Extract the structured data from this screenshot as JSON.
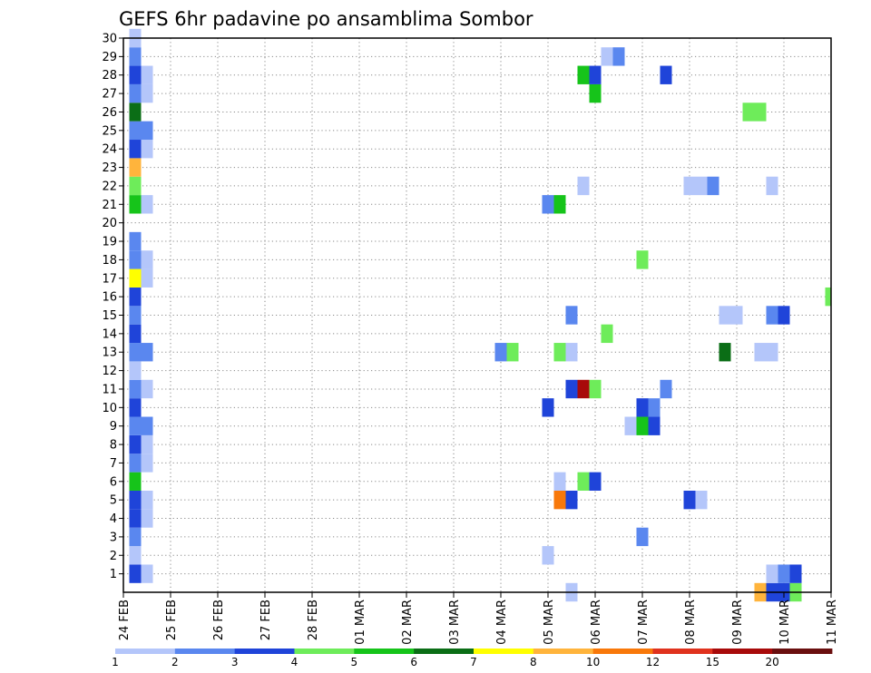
{
  "chart_data": {
    "type": "heatmap",
    "title": "GEFS 6hr padavine po ansamblima Sombor",
    "x_tick_labels": [
      "24 FEB",
      "25 FEB",
      "26 FEB",
      "27 FEB",
      "28 FEB",
      "01 MAR",
      "02 MAR",
      "03 MAR",
      "04 MAR",
      "05 MAR",
      "06 MAR",
      "07 MAR",
      "08 MAR",
      "09 MAR",
      "10 MAR",
      "11 MAR"
    ],
    "y_tick_labels": [
      "1",
      "2",
      "3",
      "4",
      "5",
      "6",
      "7",
      "8",
      "9",
      "10",
      "11",
      "12",
      "13",
      "14",
      "15",
      "16",
      "17",
      "18",
      "19",
      "20",
      "21",
      "22",
      "23",
      "24",
      "25",
      "26",
      "27",
      "28",
      "29",
      "30"
    ],
    "y_range": [
      0,
      30
    ],
    "x_range_days": [
      0,
      15
    ],
    "grid": true,
    "colorbar": {
      "labels": [
        "1",
        "2",
        "3",
        "4",
        "5",
        "6",
        "7",
        "8",
        "10",
        "12",
        "15",
        "20"
      ],
      "colors": [
        "#b4c6fa",
        "#5a87ef",
        "#1f44d9",
        "#6eec5a",
        "#16c41a",
        "#0b6e16",
        "#ffff00",
        "#ffb43c",
        "#f8780a",
        "#e0321e",
        "#a80a0a",
        "#6a0f0f"
      ]
    },
    "cells": [
      {
        "day": 0.25,
        "member": 0,
        "level": 3
      },
      {
        "day": 0.5,
        "member": 0,
        "level": 1
      },
      {
        "day": 0.25,
        "member": 1,
        "level": 1
      },
      {
        "day": 0.25,
        "member": 2,
        "level": 2
      },
      {
        "day": 0.25,
        "member": 3,
        "level": 3
      },
      {
        "day": 0.5,
        "member": 3,
        "level": 1
      },
      {
        "day": 0.25,
        "member": 4,
        "level": 3
      },
      {
        "day": 0.5,
        "member": 4,
        "level": 1
      },
      {
        "day": 0.25,
        "member": 5,
        "level": 5
      },
      {
        "day": 0.25,
        "member": 6,
        "level": 2
      },
      {
        "day": 0.5,
        "member": 6,
        "level": 1
      },
      {
        "day": 0.25,
        "member": 7,
        "level": 3
      },
      {
        "day": 0.5,
        "member": 7,
        "level": 1
      },
      {
        "day": 0.25,
        "member": 8,
        "level": 2
      },
      {
        "day": 0.5,
        "member": 8,
        "level": 2
      },
      {
        "day": 0.25,
        "member": 9,
        "level": 3
      },
      {
        "day": 0.25,
        "member": 10,
        "level": 2
      },
      {
        "day": 0.5,
        "member": 10,
        "level": 1
      },
      {
        "day": 0.25,
        "member": 11,
        "level": 1
      },
      {
        "day": 0.25,
        "member": 12,
        "level": 2
      },
      {
        "day": 0.5,
        "member": 12,
        "level": 2
      },
      {
        "day": 0.25,
        "member": 13,
        "level": 3
      },
      {
        "day": 0.25,
        "member": 14,
        "level": 2
      },
      {
        "day": 0.25,
        "member": 15,
        "level": 3
      },
      {
        "day": 0.25,
        "member": 16,
        "level": 7
      },
      {
        "day": 0.5,
        "member": 16,
        "level": 1
      },
      {
        "day": 0.25,
        "member": 17,
        "level": 2
      },
      {
        "day": 0.5,
        "member": 17,
        "level": 1
      },
      {
        "day": 0.25,
        "member": 18,
        "level": 2
      },
      {
        "day": 0.25,
        "member": 20,
        "level": 5
      },
      {
        "day": 0.5,
        "member": 20,
        "level": 1
      },
      {
        "day": 0.25,
        "member": 21,
        "level": 4
      },
      {
        "day": 0.25,
        "member": 22,
        "level": 8
      },
      {
        "day": 0.25,
        "member": 23,
        "level": 3
      },
      {
        "day": 0.5,
        "member": 23,
        "level": 1
      },
      {
        "day": 0.25,
        "member": 24,
        "level": 2
      },
      {
        "day": 0.5,
        "member": 24,
        "level": 2
      },
      {
        "day": 0.25,
        "member": 25,
        "level": 6
      },
      {
        "day": 0.25,
        "member": 26,
        "level": 2
      },
      {
        "day": 0.5,
        "member": 26,
        "level": 1
      },
      {
        "day": 0.25,
        "member": 27,
        "level": 3
      },
      {
        "day": 0.5,
        "member": 27,
        "level": 1
      },
      {
        "day": 0.25,
        "member": 28,
        "level": 2
      },
      {
        "day": 0.25,
        "member": 29,
        "level": 1
      },
      {
        "day": 9.0,
        "member": 1,
        "level": 1
      },
      {
        "day": 11.0,
        "member": 2,
        "level": 2
      },
      {
        "day": 9.25,
        "member": 4,
        "level": 9
      },
      {
        "day": 9.5,
        "member": 4,
        "level": 3
      },
      {
        "day": 12.0,
        "member": 4,
        "level": 3
      },
      {
        "day": 12.25,
        "member": 4,
        "level": 1
      },
      {
        "day": 9.25,
        "member": 5,
        "level": 1
      },
      {
        "day": 9.75,
        "member": 5,
        "level": 4
      },
      {
        "day": 10.0,
        "member": 5,
        "level": 3
      },
      {
        "day": 10.75,
        "member": 8,
        "level": 1
      },
      {
        "day": 11.0,
        "member": 8,
        "level": 5
      },
      {
        "day": 11.25,
        "member": 8,
        "level": 3
      },
      {
        "day": 9.0,
        "member": 9,
        "level": 3
      },
      {
        "day": 11.0,
        "member": 9,
        "level": 3
      },
      {
        "day": 11.25,
        "member": 9,
        "level": 2
      },
      {
        "day": 9.5,
        "member": 10,
        "level": 3
      },
      {
        "day": 9.75,
        "member": 10,
        "level": 11
      },
      {
        "day": 10.0,
        "member": 10,
        "level": 4
      },
      {
        "day": 11.5,
        "member": 10,
        "level": 2
      },
      {
        "day": 8.0,
        "member": 12,
        "level": 2
      },
      {
        "day": 8.25,
        "member": 12,
        "level": 4
      },
      {
        "day": 9.25,
        "member": 12,
        "level": 4
      },
      {
        "day": 9.5,
        "member": 12,
        "level": 1
      },
      {
        "day": 12.75,
        "member": 12,
        "level": 6
      },
      {
        "day": 13.5,
        "member": 12,
        "level": 1
      },
      {
        "day": 13.75,
        "member": 12,
        "level": 1
      },
      {
        "day": 10.25,
        "member": 13,
        "level": 4
      },
      {
        "day": 9.5,
        "member": 14,
        "level": 2
      },
      {
        "day": 12.75,
        "member": 14,
        "level": 1
      },
      {
        "day": 13.0,
        "member": 14,
        "level": 1
      },
      {
        "day": 13.75,
        "member": 14,
        "level": 2
      },
      {
        "day": 14.0,
        "member": 14,
        "level": 3
      },
      {
        "day": 15.0,
        "member": 15,
        "level": 4
      },
      {
        "day": 11.0,
        "member": 17,
        "level": 4
      },
      {
        "day": 9.0,
        "member": 20,
        "level": 2
      },
      {
        "day": 9.25,
        "member": 20,
        "level": 5
      },
      {
        "day": 9.75,
        "member": 21,
        "level": 1
      },
      {
        "day": 12.0,
        "member": 21,
        "level": 1
      },
      {
        "day": 12.25,
        "member": 21,
        "level": 1
      },
      {
        "day": 12.5,
        "member": 21,
        "level": 2
      },
      {
        "day": 13.75,
        "member": 21,
        "level": 1
      },
      {
        "day": 13.25,
        "member": 25,
        "level": 4
      },
      {
        "day": 13.5,
        "member": 25,
        "level": 4
      },
      {
        "day": 10.0,
        "member": 26,
        "level": 5
      },
      {
        "day": 9.75,
        "member": 27,
        "level": 5
      },
      {
        "day": 10.0,
        "member": 27,
        "level": 3
      },
      {
        "day": 11.5,
        "member": 27,
        "level": 3
      },
      {
        "day": 10.25,
        "member": 28,
        "level": 1
      },
      {
        "day": 10.5,
        "member": 28,
        "level": 2
      },
      {
        "day": 9.5,
        "member": -1,
        "level": 1
      },
      {
        "day": 13.5,
        "member": -1,
        "level": 8
      },
      {
        "day": 13.75,
        "member": -1,
        "level": 3
      },
      {
        "day": 14.0,
        "member": -1,
        "level": 3
      },
      {
        "day": 14.25,
        "member": -1,
        "level": 4
      },
      {
        "day": 13.75,
        "member": 0,
        "level": 1
      },
      {
        "day": 14.0,
        "member": 0,
        "level": 2
      },
      {
        "day": 14.25,
        "member": 0,
        "level": 3
      }
    ]
  }
}
